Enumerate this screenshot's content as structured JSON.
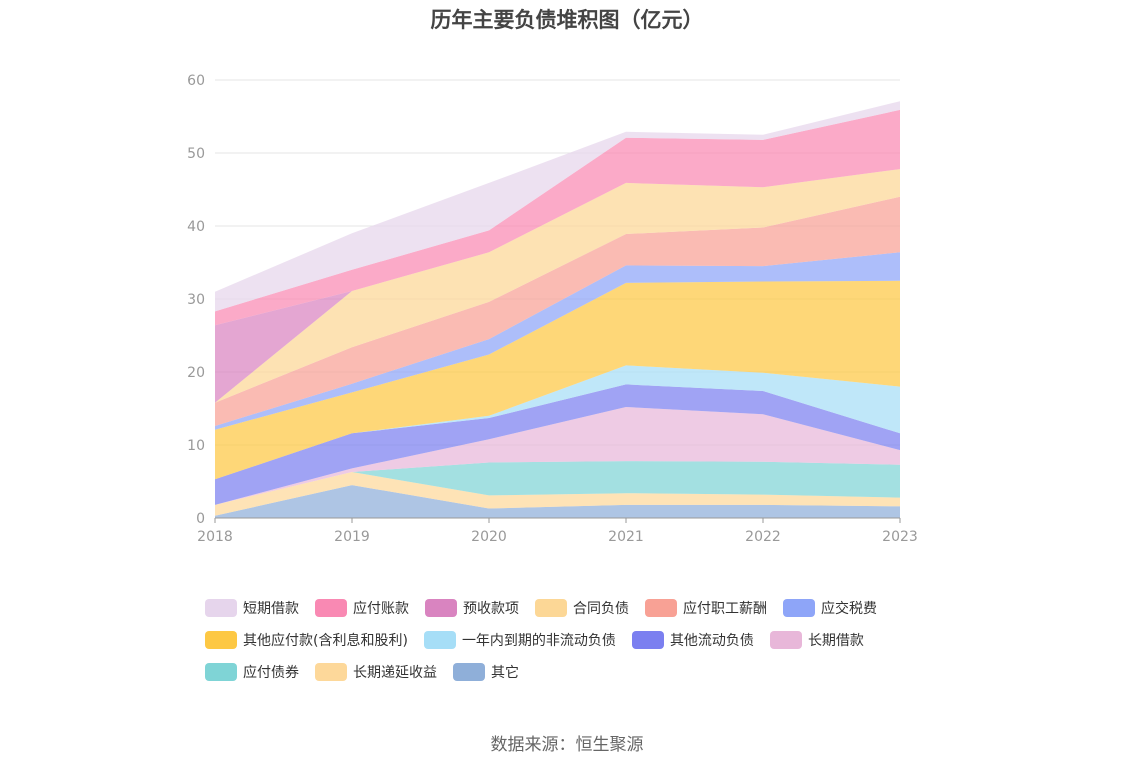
{
  "chart_data": {
    "type": "area",
    "title": "历年主要负债堆积图（亿元）",
    "x": [
      "2018",
      "2019",
      "2020",
      "2021",
      "2022",
      "2023"
    ],
    "ylim": [
      0,
      60
    ],
    "yticks": [
      "0",
      "10",
      "20",
      "30",
      "40",
      "50",
      "60"
    ],
    "stacked": true,
    "grid": true,
    "legend_position": "bottom",
    "series": [
      {
        "name": "其它",
        "color": "#8fafd9",
        "values": [
          0.3,
          4.5,
          1.3,
          1.8,
          1.8,
          1.6
        ]
      },
      {
        "name": "长期递延收益",
        "color": "#fdd89a",
        "values": [
          1.5,
          1.8,
          1.8,
          1.6,
          1.4,
          1.2
        ]
      },
      {
        "name": "应付债券",
        "color": "#7fd4d6",
        "values": [
          0,
          0,
          4.5,
          4.4,
          4.5,
          4.5
        ]
      },
      {
        "name": "长期借款",
        "color": "#e8b7d9",
        "values": [
          0,
          0.5,
          3.2,
          7.4,
          6.5,
          2.0
        ]
      },
      {
        "name": "其他流动负债",
        "color": "#7b7ff0",
        "values": [
          3.5,
          4.8,
          2.9,
          3.1,
          3.2,
          2.3
        ]
      },
      {
        "name": "一年内到期的非流动负债",
        "color": "#a6def7",
        "values": [
          0,
          0,
          0.3,
          2.6,
          2.5,
          6.4
        ]
      },
      {
        "name": "其他应付款(含利息和股利)",
        "color": "#fdc844",
        "values": [
          6.8,
          5.6,
          8.4,
          11.3,
          12.5,
          14.5
        ]
      },
      {
        "name": "应交税费",
        "color": "#8ea5f8",
        "values": [
          0.5,
          1.2,
          2.1,
          2.4,
          2.1,
          3.9
        ]
      },
      {
        "name": "应付职工薪酬",
        "color": "#f8a195",
        "values": [
          3.2,
          5.0,
          5.1,
          4.3,
          5.3,
          7.6
        ]
      },
      {
        "name": "合同负债",
        "color": "#fcd796",
        "values": [
          0,
          7.7,
          6.8,
          7.0,
          5.5,
          3.8
        ]
      },
      {
        "name": "预收款项",
        "color": "#d984c0",
        "values": [
          10.6,
          0,
          0,
          0,
          0,
          0
        ]
      },
      {
        "name": "应付账款",
        "color": "#f989b3",
        "values": [
          1.9,
          2.9,
          3.0,
          6.2,
          6.5,
          8.1
        ]
      },
      {
        "name": "短期借款",
        "color": "#e6d5ec",
        "values": [
          2.7,
          5.0,
          6.5,
          0.8,
          0.7,
          1.2
        ]
      }
    ]
  },
  "legend": [
    {
      "label": "短期借款",
      "color": "#e6d5ec"
    },
    {
      "label": "应付账款",
      "color": "#f989b3"
    },
    {
      "label": "预收款项",
      "color": "#d984c0"
    },
    {
      "label": "合同负债",
      "color": "#fcd796"
    },
    {
      "label": "应付职工薪酬",
      "color": "#f8a195"
    },
    {
      "label": "应交税费",
      "color": "#8ea5f8"
    },
    {
      "label": "其他应付款(含利息和股利)",
      "color": "#fdc844"
    },
    {
      "label": "一年内到期的非流动负债",
      "color": "#a6def7"
    },
    {
      "label": "其他流动负债",
      "color": "#7b7ff0"
    },
    {
      "label": "长期借款",
      "color": "#e8b7d9"
    },
    {
      "label": "应付债券",
      "color": "#7fd4d6"
    },
    {
      "label": "长期递延收益",
      "color": "#fdd89a"
    },
    {
      "label": "其它",
      "color": "#8fafd9"
    }
  ],
  "source": "数据来源：恒生聚源"
}
